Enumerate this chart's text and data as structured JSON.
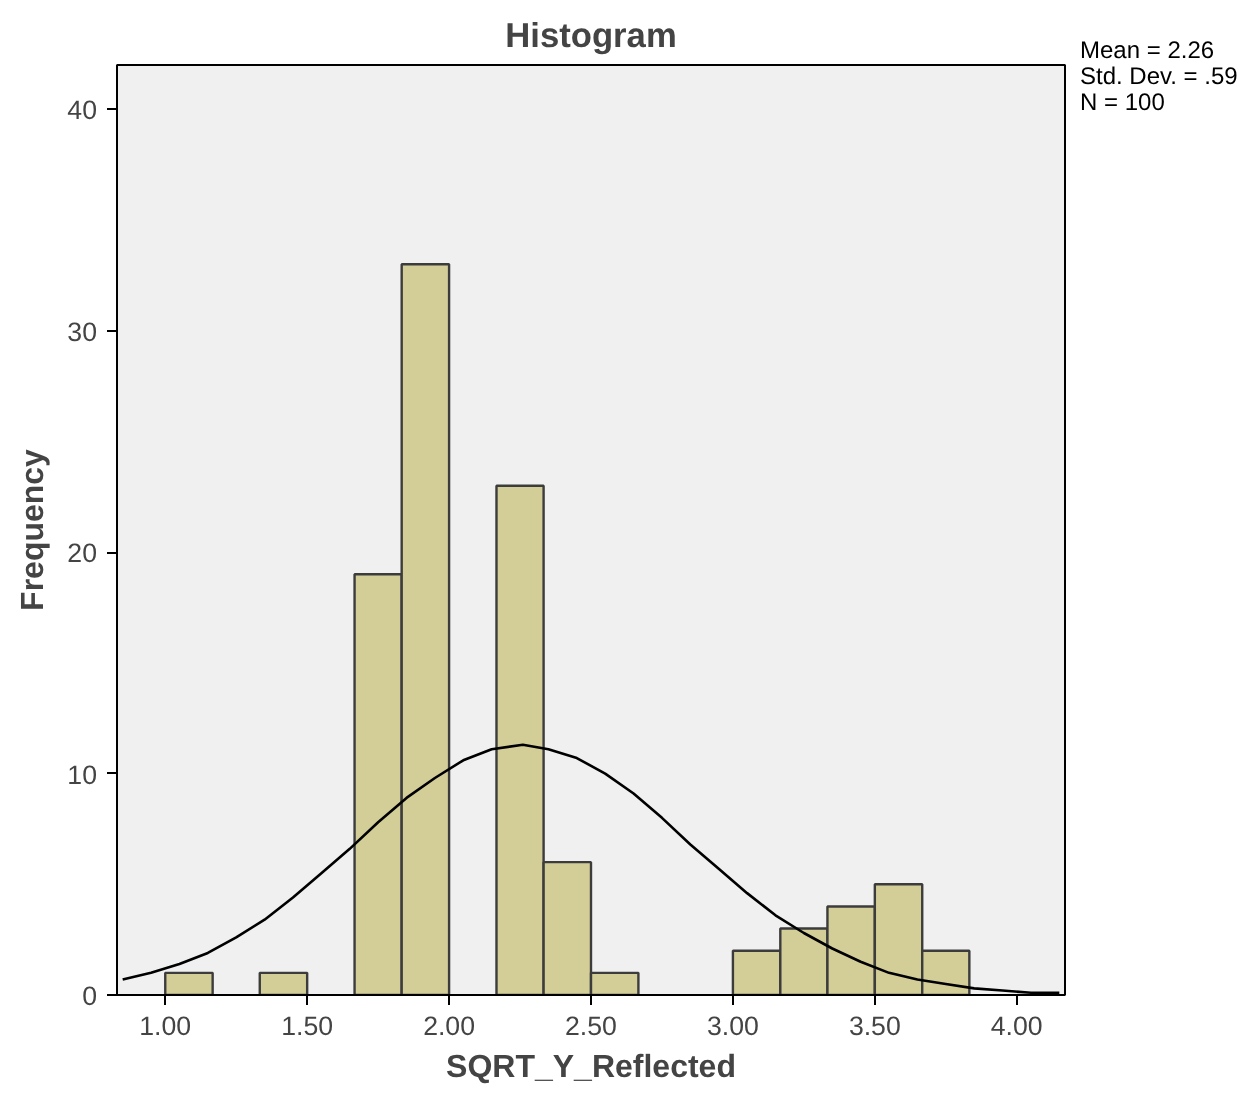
{
  "chart_data": {
    "type": "histogram",
    "title": "Histogram",
    "xlabel": "SQRT_Y_Reflected",
    "ylabel": "Frequency",
    "bins": [
      1.0,
      1.167,
      1.333,
      1.5,
      1.667,
      1.833,
      2.0,
      2.167,
      2.333,
      2.5,
      2.667,
      2.833,
      3.0,
      3.167,
      3.333,
      3.5,
      3.667,
      3.833
    ],
    "values": [
      1,
      0,
      1,
      0,
      19,
      33,
      0,
      23,
      6,
      1,
      0,
      0,
      2,
      3,
      4,
      5,
      2
    ],
    "color": "#d3ce97",
    "series": [
      {
        "type": "line",
        "color": "#000000",
        "x": [
          0.85,
          0.95,
          1.05,
          1.15,
          1.25,
          1.35,
          1.45,
          1.55,
          1.65,
          1.75,
          1.85,
          1.95,
          2.05,
          2.15,
          2.26,
          2.35,
          2.45,
          2.55,
          2.65,
          2.75,
          2.85,
          2.95,
          3.05,
          3.15,
          3.25,
          3.35,
          3.45,
          3.55,
          3.65,
          3.75,
          3.85,
          3.95,
          4.05,
          4.15
        ],
        "values": [
          0.7,
          1.0,
          1.4,
          1.9,
          2.6,
          3.4,
          4.4,
          5.5,
          6.6,
          7.8,
          8.9,
          9.8,
          10.6,
          11.1,
          11.3,
          11.1,
          10.7,
          10.0,
          9.1,
          8.0,
          6.8,
          5.7,
          4.6,
          3.6,
          2.8,
          2.1,
          1.5,
          1.0,
          0.7,
          0.5,
          0.3,
          0.2,
          0.1,
          0.1
        ]
      }
    ],
    "xlim": [
      0.83,
      4.17
    ],
    "ylim": [
      0,
      42
    ],
    "xticks": [
      {
        "value": 1,
        "label": "1.00"
      },
      {
        "value": 1.5,
        "label": "1.50"
      },
      {
        "value": 2,
        "label": "2.00"
      },
      {
        "value": 2.5,
        "label": "2.50"
      },
      {
        "value": 3,
        "label": "3.00"
      },
      {
        "value": 3.5,
        "label": "3.50"
      },
      {
        "value": 4,
        "label": "4.00"
      }
    ],
    "yticks": [
      0,
      10,
      20,
      30,
      40
    ],
    "grid": false,
    "annotations": [
      "Mean = 2.26",
      "Std. Dev. = .59",
      "N = 100"
    ]
  }
}
